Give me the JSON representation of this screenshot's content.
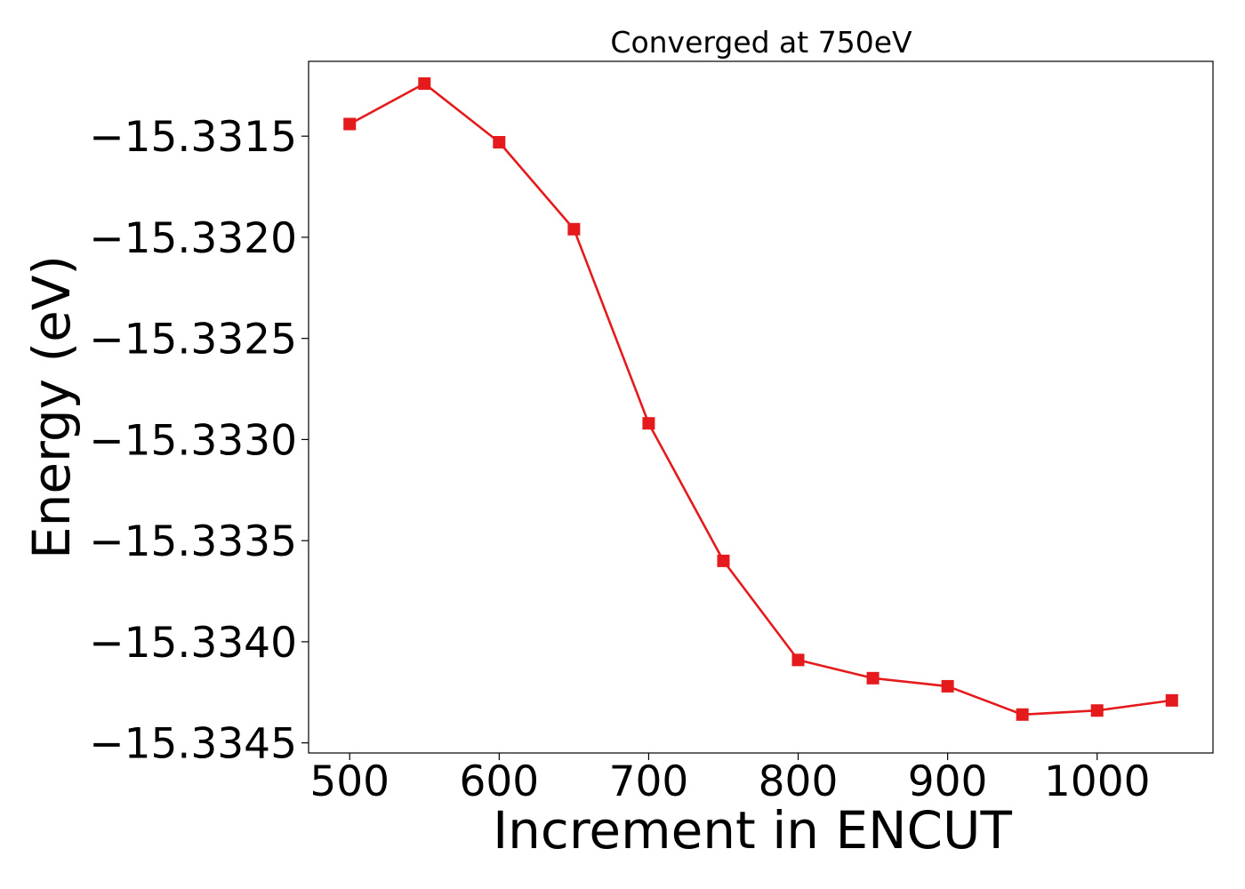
{
  "chart_data": {
    "type": "line",
    "title": "Converged at 750eV",
    "xlabel": "Increment in ENCUT",
    "ylabel": "Energy (eV)",
    "x": [
      500,
      550,
      600,
      650,
      700,
      750,
      800,
      850,
      900,
      950,
      1000,
      1050
    ],
    "series": [
      {
        "values": [
          -15.33144,
          -15.33124,
          -15.33153,
          -15.33196,
          -15.33292,
          -15.3336,
          -15.33409,
          -15.33418,
          -15.33422,
          -15.33436,
          -15.33434,
          -15.33429
        ],
        "color": "#e41a1c",
        "marker": "square"
      }
    ],
    "xlim": [
      472.5,
      1077.5
    ],
    "ylim": [
      -15.33455,
      -15.33113
    ],
    "xticks": [
      500,
      600,
      700,
      800,
      900,
      1000
    ],
    "xtick_labels": [
      "500",
      "600",
      "700",
      "800",
      "900",
      "1000"
    ],
    "yticks": [
      -15.3315,
      -15.332,
      -15.3325,
      -15.333,
      -15.3335,
      -15.334,
      -15.3345
    ],
    "ytick_labels": [
      "−15.3315",
      "−15.3320",
      "−15.3325",
      "−15.3330",
      "−15.3335",
      "−15.3340",
      "−15.3345"
    ],
    "grid": false,
    "legend": false
  }
}
